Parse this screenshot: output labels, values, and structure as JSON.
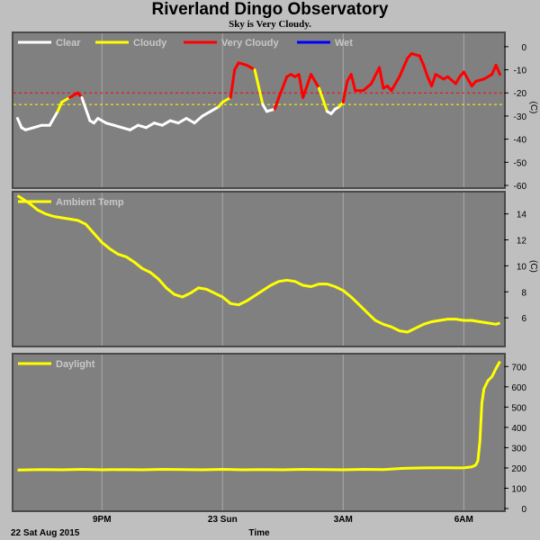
{
  "title": "Riverland Dingo Observatory",
  "subtitle": "Sky is Very Cloudy.",
  "colors": {
    "background": "#bfbfbf",
    "plot_bg": "#808080",
    "grid": "#a9a9a9",
    "clear": "#ffffff",
    "cloudy": "#ffff00",
    "very_cloudy": "#ff0000",
    "wet": "#0000ff"
  },
  "x_axis": {
    "label": "Time",
    "date_label": "22 Sat Aug 2015",
    "ticks": [
      {
        "label": "9PM",
        "t": 21
      },
      {
        "label": "23 Sun",
        "t": 24
      },
      {
        "label": "3AM",
        "t": 27
      },
      {
        "label": "6AM",
        "t": 30
      }
    ],
    "xlim": [
      18.8,
      31.0
    ]
  },
  "chart_data": [
    {
      "type": "line",
      "name": "sky",
      "legend": [
        "Clear",
        "Cloudy",
        "Very Cloudy",
        "Wet"
      ],
      "ylabel": "(C)",
      "ylim": [
        -60,
        5
      ],
      "yticks": [
        0,
        -10,
        -20,
        -30,
        -40,
        -50,
        -60
      ],
      "thresholds": [
        {
          "value": -20,
          "color": "#ff0000"
        },
        {
          "value": -25,
          "color": "#ffff00"
        }
      ],
      "x": [
        18.9,
        19.0,
        19.1,
        19.3,
        19.5,
        19.7,
        19.9,
        20.0,
        20.2,
        20.4,
        20.5,
        20.7,
        20.8,
        20.9,
        21.1,
        21.3,
        21.5,
        21.7,
        21.9,
        22.1,
        22.3,
        22.5,
        22.7,
        22.9,
        23.1,
        23.3,
        23.5,
        23.7,
        23.9,
        24.0,
        24.2,
        24.3,
        24.4,
        24.6,
        24.8,
        25.0,
        25.1,
        25.3,
        25.4,
        25.6,
        25.7,
        25.8,
        25.9,
        26.0,
        26.2,
        26.4,
        26.6,
        26.7,
        26.8,
        26.9,
        27.0,
        27.1,
        27.2,
        27.3,
        27.5,
        27.7,
        27.9,
        28.0,
        28.1,
        28.2,
        28.4,
        28.6,
        28.7,
        28.9,
        29.0,
        29.1,
        29.2,
        29.3,
        29.5,
        29.6,
        29.8,
        29.9,
        30.0,
        30.2,
        30.3,
        30.5,
        30.7,
        30.8,
        30.9
      ],
      "y": [
        -31,
        -35,
        -36,
        -35,
        -34,
        -34,
        -28,
        -24,
        -22,
        -20,
        -22,
        -32,
        -33,
        -31,
        -33,
        -34,
        -35,
        -36,
        -34,
        -35,
        -33,
        -34,
        -32,
        -33,
        -31,
        -33,
        -30,
        -28,
        -26,
        -24,
        -22,
        -10,
        -7,
        -8,
        -10,
        -25,
        -28,
        -27,
        -22,
        -13,
        -12,
        -13,
        -12,
        -22,
        -12,
        -18,
        -28,
        -29,
        -27,
        -26,
        -24,
        -15,
        -12,
        -19,
        -19,
        -16,
        -9,
        -18,
        -17,
        -19,
        -13,
        -5,
        -3,
        -4,
        -8,
        -13,
        -17,
        -12,
        -14,
        -13,
        -16,
        -13,
        -11,
        -17,
        -15,
        -14,
        -12,
        -8,
        -12
      ],
      "status": [
        "clear",
        "clear",
        "clear",
        "clear",
        "clear",
        "clear",
        "clear",
        "cloudy",
        "cloudy",
        "very_cloudy",
        "very_cloudy",
        "clear",
        "clear",
        "clear",
        "clear",
        "clear",
        "clear",
        "clear",
        "clear",
        "clear",
        "clear",
        "clear",
        "clear",
        "clear",
        "clear",
        "clear",
        "clear",
        "clear",
        "clear",
        "cloudy",
        "cloudy",
        "very_cloudy",
        "very_cloudy",
        "very_cloudy",
        "very_cloudy",
        "cloudy",
        "clear",
        "clear",
        "very_cloudy",
        "very_cloudy",
        "very_cloudy",
        "very_cloudy",
        "very_cloudy",
        "very_cloudy",
        "very_cloudy",
        "very_cloudy",
        "cloudy",
        "clear",
        "clear",
        "clear",
        "cloudy",
        "very_cloudy",
        "very_cloudy",
        "very_cloudy",
        "very_cloudy",
        "very_cloudy",
        "very_cloudy",
        "very_cloudy",
        "very_cloudy",
        "very_cloudy",
        "very_cloudy",
        "very_cloudy",
        "very_cloudy",
        "very_cloudy",
        "very_cloudy",
        "very_cloudy",
        "very_cloudy",
        "very_cloudy",
        "very_cloudy",
        "very_cloudy",
        "very_cloudy",
        "very_cloudy",
        "very_cloudy",
        "very_cloudy",
        "very_cloudy",
        "very_cloudy",
        "very_cloudy",
        "very_cloudy",
        "very_cloudy"
      ]
    },
    {
      "type": "line",
      "name": "Ambient Temp",
      "legend": [
        "Ambient Temp"
      ],
      "ylabel": "(C)",
      "ylim": [
        4,
        15.5
      ],
      "yticks": [
        6,
        8,
        10,
        12,
        14
      ],
      "x": [
        18.9,
        19.0,
        19.2,
        19.4,
        19.6,
        19.8,
        20.0,
        20.2,
        20.4,
        20.6,
        20.8,
        21.0,
        21.2,
        21.4,
        21.6,
        21.8,
        22.0,
        22.2,
        22.4,
        22.6,
        22.8,
        23.0,
        23.2,
        23.4,
        23.6,
        23.8,
        24.0,
        24.2,
        24.4,
        24.6,
        24.8,
        25.0,
        25.2,
        25.4,
        25.6,
        25.8,
        26.0,
        26.2,
        26.4,
        26.6,
        26.8,
        27.0,
        27.2,
        27.4,
        27.6,
        27.8,
        28.0,
        28.2,
        28.4,
        28.6,
        28.8,
        29.0,
        29.2,
        29.4,
        29.6,
        29.8,
        30.0,
        30.2,
        30.4,
        30.6,
        30.8,
        30.9
      ],
      "y": [
        15.4,
        15.2,
        14.8,
        14.3,
        14.0,
        13.8,
        13.7,
        13.6,
        13.5,
        13.2,
        12.5,
        11.8,
        11.3,
        10.9,
        10.7,
        10.3,
        9.8,
        9.5,
        9.0,
        8.3,
        7.8,
        7.6,
        7.9,
        8.3,
        8.2,
        7.9,
        7.6,
        7.1,
        7.0,
        7.3,
        7.7,
        8.1,
        8.5,
        8.8,
        8.9,
        8.8,
        8.5,
        8.4,
        8.6,
        8.6,
        8.4,
        8.1,
        7.6,
        7.0,
        6.4,
        5.8,
        5.5,
        5.3,
        5.0,
        4.9,
        5.2,
        5.5,
        5.7,
        5.8,
        5.9,
        5.9,
        5.8,
        5.8,
        5.7,
        5.6,
        5.5,
        5.6
      ]
    },
    {
      "type": "line",
      "name": "Daylight",
      "legend": [
        "Daylight"
      ],
      "ylabel": "",
      "ylim": [
        0,
        750
      ],
      "yticks": [
        0,
        100,
        200,
        300,
        400,
        500,
        600,
        700
      ],
      "x": [
        18.9,
        19.5,
        20.0,
        20.5,
        21.0,
        21.5,
        22.0,
        22.5,
        23.0,
        23.5,
        24.0,
        24.5,
        25.0,
        25.5,
        26.0,
        26.5,
        27.0,
        27.5,
        28.0,
        28.5,
        29.0,
        29.5,
        30.0,
        30.2,
        30.3,
        30.35,
        30.4,
        30.45,
        30.5,
        30.6,
        30.7,
        30.8,
        30.9
      ],
      "y": [
        190,
        192,
        191,
        193,
        191,
        192,
        191,
        193,
        192,
        191,
        193,
        191,
        192,
        191,
        193,
        192,
        191,
        193,
        192,
        198,
        200,
        201,
        200,
        205,
        215,
        235,
        330,
        520,
        590,
        630,
        650,
        690,
        725
      ]
    }
  ]
}
